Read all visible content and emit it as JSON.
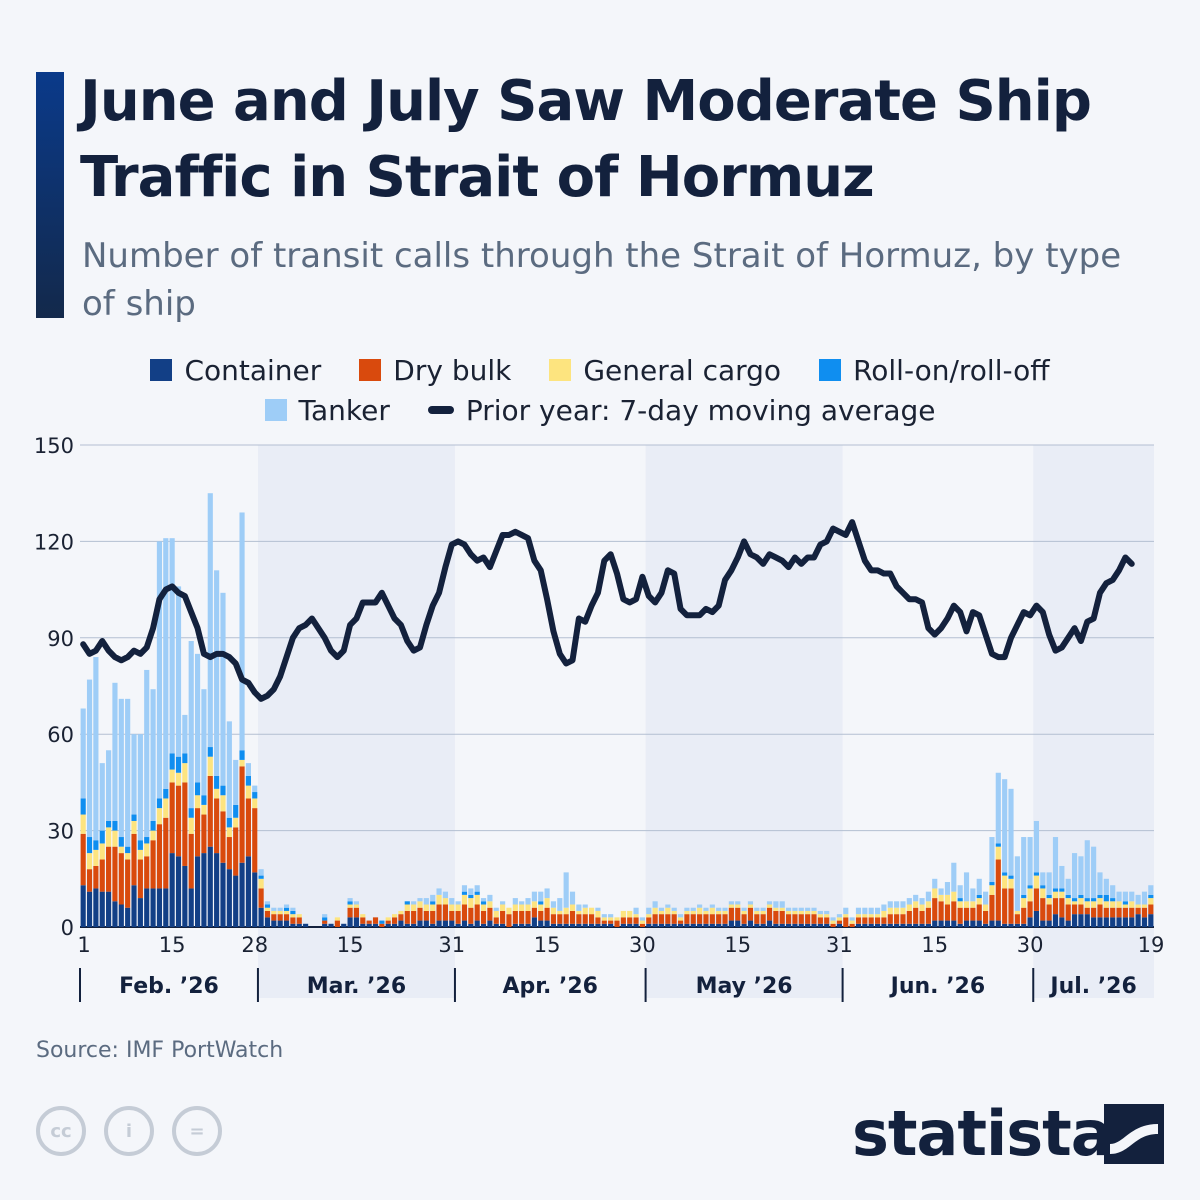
{
  "header": {
    "title": "June and July Saw Moderate Ship Traffic in Strait of Hormuz",
    "subtitle": "Number of transit calls through the Strait of Hormuz, by type of ship"
  },
  "legend": {
    "items": [
      {
        "label": "Container",
        "color": "#123f86",
        "kind": "square"
      },
      {
        "label": "Dry bulk",
        "color": "#d94a0d",
        "kind": "square"
      },
      {
        "label": "General cargo",
        "color": "#fde47f",
        "kind": "square"
      },
      {
        "label": "Roll-on/roll-off",
        "color": "#0f8ef0",
        "kind": "square"
      },
      {
        "label": "Tanker",
        "color": "#9ecdf7",
        "kind": "square"
      },
      {
        "label": "Prior year: 7-day moving average",
        "color": "#13213d",
        "kind": "line"
      }
    ]
  },
  "chart_data": {
    "type": "bar",
    "stacked": true,
    "ylim": [
      0,
      150
    ],
    "yticks": [
      0,
      30,
      60,
      90,
      120,
      150
    ],
    "xlabel": "",
    "ylabel": "",
    "x_tick_labels": [
      {
        "day": 0,
        "label": "1"
      },
      {
        "day": 14,
        "label": "15"
      },
      {
        "day": 27,
        "label": "28"
      },
      {
        "day": 42,
        "label": "15"
      },
      {
        "day": 58,
        "label": "31"
      },
      {
        "day": 73,
        "label": "15"
      },
      {
        "day": 88,
        "label": "30"
      },
      {
        "day": 103,
        "label": "15"
      },
      {
        "day": 119,
        "label": "31"
      },
      {
        "day": 134,
        "label": "15"
      },
      {
        "day": 149,
        "label": "30"
      },
      {
        "day": 168,
        "label": "19"
      }
    ],
    "months": [
      {
        "label": "Feb. ’26",
        "start": 0,
        "days": 28
      },
      {
        "label": "Mar. ’26",
        "start": 28,
        "days": 31
      },
      {
        "label": "Apr. ’26",
        "start": 59,
        "days": 30
      },
      {
        "label": "May ’26",
        "start": 89,
        "days": 31
      },
      {
        "label": "Jun. ’26",
        "start": 120,
        "days": 30
      },
      {
        "label": "Jul. ’26",
        "start": 150,
        "days": 19
      }
    ],
    "series": [
      {
        "name": "Container",
        "color": "#123f86",
        "values": [
          13,
          11,
          12,
          11,
          11,
          8,
          7,
          6,
          13,
          9,
          12,
          12,
          12,
          12,
          23,
          22,
          19,
          12,
          22,
          23,
          25,
          23,
          20,
          18,
          16,
          20,
          22,
          17,
          6,
          3,
          2,
          2,
          2,
          1,
          1,
          1,
          0,
          0,
          1,
          1,
          0,
          1,
          3,
          3,
          1,
          1,
          1,
          0,
          1,
          1,
          2,
          1,
          1,
          2,
          2,
          1,
          2,
          2,
          2,
          1,
          2,
          1,
          2,
          1,
          2,
          1,
          1,
          0,
          1,
          1,
          1,
          3,
          2,
          2,
          1,
          1,
          1,
          1,
          1,
          1,
          1,
          1,
          1,
          1,
          0,
          1,
          1,
          1,
          0,
          1,
          1,
          1,
          1,
          1,
          1,
          1,
          1,
          1,
          1,
          1,
          1,
          1,
          2,
          2,
          1,
          2,
          1,
          1,
          2,
          1,
          1,
          1,
          1,
          1,
          1,
          1,
          1,
          1,
          0,
          1,
          0,
          0,
          1,
          1,
          1,
          1,
          1,
          1,
          1,
          1,
          1,
          1,
          1,
          1,
          2,
          2,
          2,
          2,
          1,
          2,
          2,
          2,
          1,
          2,
          2,
          1,
          1,
          1,
          1,
          3,
          5,
          2,
          2,
          4,
          3,
          2,
          4,
          4,
          4,
          3,
          3,
          3,
          3,
          3,
          3,
          3,
          4,
          3,
          4
        ]
      },
      {
        "name": "Dry bulk",
        "color": "#d94a0d",
        "values": [
          16,
          7,
          7,
          10,
          14,
          17,
          16,
          15,
          16,
          12,
          10,
          15,
          20,
          22,
          22,
          22,
          26,
          17,
          15,
          12,
          22,
          17,
          16,
          10,
          15,
          30,
          18,
          20,
          6,
          2,
          2,
          2,
          2,
          2,
          2,
          0,
          0,
          0,
          1,
          0,
          2,
          0,
          3,
          3,
          2,
          1,
          2,
          1,
          1,
          2,
          2,
          4,
          4,
          4,
          3,
          4,
          5,
          5,
          3,
          4,
          5,
          5,
          5,
          4,
          4,
          2,
          4,
          4,
          4,
          4,
          4,
          3,
          3,
          4,
          3,
          3,
          3,
          4,
          3,
          3,
          3,
          2,
          1,
          1,
          2,
          2,
          2,
          2,
          1,
          2,
          3,
          3,
          3,
          3,
          1,
          3,
          3,
          3,
          3,
          3,
          3,
          3,
          4,
          4,
          3,
          4,
          3,
          3,
          4,
          4,
          4,
          3,
          3,
          3,
          3,
          3,
          2,
          2,
          1,
          1,
          3,
          1,
          2,
          2,
          2,
          2,
          2,
          3,
          3,
          3,
          4,
          5,
          4,
          5,
          7,
          6,
          5,
          6,
          5,
          4,
          4,
          5,
          4,
          8,
          19,
          11,
          11,
          3,
          5,
          5,
          7,
          7,
          5,
          5,
          6,
          5,
          3,
          3,
          2,
          3,
          4,
          3,
          3,
          3,
          3,
          3,
          2,
          3,
          3
        ]
      },
      {
        "name": "General cargo",
        "color": "#fde47f",
        "values": [
          6,
          5,
          5,
          5,
          6,
          5,
          2,
          2,
          4,
          3,
          4,
          3,
          5,
          6,
          4,
          4,
          6,
          5,
          4,
          3,
          6,
          3,
          5,
          3,
          3,
          2,
          4,
          3,
          3,
          1,
          1,
          1,
          1,
          1,
          1,
          0,
          0,
          0,
          0,
          0,
          1,
          0,
          1,
          1,
          1,
          0,
          0,
          0,
          1,
          1,
          1,
          2,
          2,
          2,
          2,
          2,
          3,
          2,
          2,
          2,
          3,
          3,
          3,
          2,
          2,
          2,
          2,
          2,
          2,
          2,
          2,
          2,
          2,
          3,
          2,
          1,
          2,
          2,
          1,
          2,
          2,
          2,
          1,
          1,
          1,
          2,
          2,
          1,
          1,
          1,
          2,
          1,
          2,
          1,
          1,
          1,
          1,
          2,
          1,
          2,
          1,
          1,
          1,
          1,
          1,
          1,
          1,
          1,
          1,
          1,
          1,
          1,
          1,
          1,
          1,
          1,
          1,
          1,
          1,
          1,
          1,
          1,
          1,
          1,
          1,
          1,
          2,
          2,
          2,
          2,
          2,
          2,
          2,
          2,
          3,
          2,
          3,
          3,
          2,
          2,
          2,
          2,
          2,
          3,
          4,
          4,
          3,
          1,
          3,
          4,
          4,
          3,
          2,
          2,
          2,
          2,
          1,
          2,
          2,
          2,
          2,
          2,
          2,
          2,
          1,
          2,
          1,
          1,
          2
        ]
      },
      {
        "name": "Roll-on/roll-off",
        "color": "#0f8ef0",
        "values": [
          5,
          5,
          3,
          4,
          2,
          3,
          3,
          2,
          2,
          3,
          2,
          3,
          3,
          3,
          5,
          5,
          3,
          3,
          4,
          3,
          3,
          4,
          3,
          3,
          4,
          3,
          3,
          2,
          1,
          1,
          0,
          0,
          1,
          1,
          0,
          0,
          0,
          0,
          1,
          0,
          0,
          0,
          1,
          0,
          0,
          0,
          0,
          1,
          0,
          0,
          0,
          1,
          0,
          0,
          0,
          1,
          0,
          0,
          0,
          0,
          1,
          1,
          1,
          1,
          0,
          0,
          0,
          0,
          0,
          0,
          0,
          0,
          1,
          0,
          0,
          0,
          0,
          0,
          0,
          0,
          0,
          0,
          0,
          0,
          0,
          0,
          0,
          0,
          0,
          0,
          0,
          0,
          0,
          0,
          0,
          0,
          0,
          0,
          0,
          0,
          0,
          0,
          0,
          0,
          0,
          0,
          0,
          0,
          0,
          0,
          0,
          0,
          0,
          0,
          0,
          0,
          0,
          0,
          0,
          0,
          0,
          0,
          0,
          0,
          0,
          0,
          0,
          0,
          0,
          0,
          0,
          0,
          0,
          0,
          0,
          0,
          0,
          0,
          1,
          0,
          0,
          1,
          0,
          1,
          1,
          1,
          1,
          0,
          1,
          1,
          1,
          1,
          1,
          1,
          1,
          1,
          1,
          1,
          1,
          1,
          1,
          2,
          1,
          0,
          1,
          0,
          0,
          0,
          1
        ]
      },
      {
        "name": "Tanker",
        "color": "#9ecdf7",
        "values": [
          28,
          49,
          57,
          21,
          22,
          43,
          43,
          46,
          25,
          33,
          52,
          41,
          80,
          78,
          67,
          53,
          12,
          52,
          40,
          33,
          79,
          64,
          60,
          30,
          14,
          74,
          4,
          2,
          2,
          1,
          1,
          1,
          1,
          1,
          0,
          0,
          0,
          0,
          1,
          0,
          0,
          0,
          1,
          1,
          0,
          0,
          0,
          0,
          0,
          0,
          0,
          0,
          1,
          1,
          2,
          2,
          2,
          2,
          2,
          1,
          2,
          2,
          2,
          1,
          2,
          1,
          1,
          0,
          2,
          1,
          2,
          3,
          3,
          3,
          2,
          4,
          11,
          4,
          2,
          1,
          0,
          1,
          1,
          1,
          0,
          0,
          0,
          2,
          1,
          2,
          2,
          1,
          1,
          1,
          1,
          1,
          1,
          1,
          1,
          1,
          1,
          1,
          1,
          1,
          1,
          1,
          1,
          1,
          1,
          2,
          2,
          1,
          1,
          1,
          1,
          1,
          1,
          1,
          1,
          1,
          2,
          1,
          2,
          2,
          2,
          2,
          2,
          2,
          2,
          2,
          2,
          2,
          2,
          3,
          3,
          2,
          4,
          9,
          4,
          9,
          4,
          5,
          4,
          14,
          22,
          29,
          27,
          17,
          18,
          15,
          16,
          4,
          7,
          16,
          7,
          5,
          14,
          12,
          18,
          16,
          7,
          5,
          4,
          3,
          3,
          3,
          3,
          4,
          3
        ]
      }
    ],
    "prior_year": {
      "name": "Prior year: 7-day moving average",
      "color": "#13213d",
      "values": [
        88,
        85,
        86,
        89,
        86,
        84,
        83,
        84,
        86,
        85,
        87,
        93,
        102,
        105,
        106,
        104,
        103,
        98,
        93,
        85,
        84,
        85,
        85,
        84,
        82,
        77,
        76,
        73,
        71,
        72,
        74,
        78,
        84,
        90,
        93,
        94,
        96,
        93,
        90,
        86,
        84,
        86,
        94,
        96,
        101,
        101,
        101,
        104,
        100,
        96,
        94,
        89,
        86,
        87,
        94,
        100,
        104,
        112,
        119,
        120,
        119,
        116,
        114,
        115,
        112,
        117,
        122,
        122,
        123,
        122,
        121,
        114,
        111,
        102,
        92,
        85,
        82,
        83,
        96,
        95,
        100,
        104,
        114,
        116,
        110,
        102,
        101,
        102,
        109,
        103,
        101,
        104,
        111,
        110,
        99,
        97,
        97,
        97,
        99,
        98,
        100,
        108,
        111,
        115,
        120,
        116,
        115,
        113,
        116,
        115,
        114,
        112,
        115,
        113,
        115,
        115,
        119,
        120,
        124,
        123,
        122,
        126,
        120,
        114,
        111,
        111,
        110,
        110,
        106,
        104,
        102,
        102,
        101,
        93,
        91,
        93,
        96,
        100,
        98,
        92,
        98,
        97,
        91,
        85,
        84,
        84,
        90,
        94,
        98,
        97,
        100,
        98,
        91,
        86,
        87,
        90,
        93,
        89,
        95,
        96,
        104,
        107,
        108,
        111,
        115,
        113
      ]
    }
  },
  "footer": {
    "source": "Source: IMF PortWatch",
    "cc_icons": [
      {
        "name": "cc-icon",
        "text": "cc"
      },
      {
        "name": "attribution-icon",
        "text": "i"
      },
      {
        "name": "no-derivatives-icon",
        "text": "="
      }
    ],
    "brand": "statista"
  }
}
